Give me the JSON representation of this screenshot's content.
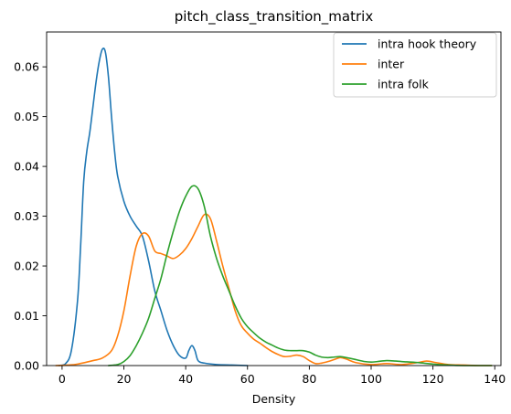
{
  "chart_data": {
    "type": "line",
    "title": "pitch_class_transition_matrix",
    "xlabel": "Density",
    "ylabel": "",
    "xlim": [
      -5,
      142
    ],
    "ylim": [
      0,
      0.067
    ],
    "xticks": [
      0,
      20,
      40,
      60,
      80,
      100,
      120,
      140
    ],
    "xtick_labels": [
      "0",
      "20",
      "40",
      "60",
      "80",
      "100",
      "120",
      "140"
    ],
    "yticks": [
      0,
      0.01,
      0.02,
      0.03,
      0.04,
      0.05,
      0.06
    ],
    "ytick_labels": [
      "0.00",
      "0.01",
      "0.02",
      "0.03",
      "0.04",
      "0.05",
      "0.06"
    ],
    "grid": false,
    "legend_position": "upper right",
    "series": [
      {
        "name": "intra hook theory",
        "color": "#1f77b4",
        "x": [
          -1,
          1,
          3,
          5,
          6,
          7,
          8,
          9,
          10,
          11,
          12,
          13,
          14,
          15,
          16,
          17,
          18,
          20,
          22,
          24,
          26,
          28,
          30,
          32,
          34,
          36,
          38,
          40,
          41,
          42,
          43,
          44,
          46,
          50,
          55,
          60
        ],
        "y": [
          0,
          0.0003,
          0.003,
          0.013,
          0.024,
          0.037,
          0.043,
          0.047,
          0.052,
          0.057,
          0.061,
          0.0635,
          0.063,
          0.058,
          0.05,
          0.043,
          0.038,
          0.033,
          0.03,
          0.028,
          0.026,
          0.021,
          0.015,
          0.011,
          0.007,
          0.004,
          0.002,
          0.0015,
          0.003,
          0.004,
          0.003,
          0.001,
          0.0005,
          0.0002,
          0.0001,
          0
        ]
      },
      {
        "name": "inter",
        "color": "#ff7f0e",
        "x": [
          -2,
          2,
          5,
          10,
          13,
          16,
          18,
          20,
          22,
          24,
          26,
          28,
          30,
          32,
          34,
          36,
          38,
          40,
          42,
          44,
          46,
          48,
          50,
          52,
          54,
          56,
          58,
          60,
          62,
          64,
          66,
          68,
          70,
          72,
          74,
          76,
          78,
          80,
          82,
          84,
          86,
          88,
          90,
          92,
          95,
          100,
          105,
          110,
          115,
          118,
          121,
          125,
          130,
          135,
          139
        ],
        "y": [
          0,
          0.0001,
          0.0003,
          0.001,
          0.0015,
          0.003,
          0.006,
          0.011,
          0.018,
          0.024,
          0.0265,
          0.026,
          0.023,
          0.0225,
          0.022,
          0.0215,
          0.0222,
          0.0235,
          0.0255,
          0.028,
          0.0303,
          0.0295,
          0.025,
          0.02,
          0.0155,
          0.011,
          0.008,
          0.0065,
          0.0053,
          0.0045,
          0.0036,
          0.0028,
          0.0022,
          0.0018,
          0.0019,
          0.0021,
          0.0018,
          0.001,
          0.0004,
          0.0005,
          0.0008,
          0.0012,
          0.0016,
          0.0013,
          0.0006,
          0.0002,
          0.0004,
          0.0002,
          0.0006,
          0.0009,
          0.0006,
          0.0002,
          0.0001,
          0,
          0
        ]
      },
      {
        "name": "intra folk",
        "color": "#2ca02c",
        "x": [
          15,
          18,
          20,
          22,
          24,
          26,
          28,
          30,
          32,
          34,
          36,
          38,
          40,
          42,
          44,
          46,
          48,
          50,
          52,
          54,
          56,
          58,
          60,
          62,
          64,
          66,
          68,
          70,
          72,
          74,
          76,
          78,
          80,
          82,
          84,
          86,
          88,
          90,
          92,
          95,
          98,
          100,
          102,
          105,
          108,
          110,
          115,
          120,
          125,
          130,
          135,
          139
        ],
        "y": [
          0,
          0.0002,
          0.0008,
          0.002,
          0.004,
          0.0065,
          0.0095,
          0.0135,
          0.0175,
          0.0225,
          0.027,
          0.031,
          0.034,
          0.036,
          0.0355,
          0.032,
          0.026,
          0.0215,
          0.018,
          0.015,
          0.012,
          0.0095,
          0.0078,
          0.0066,
          0.0055,
          0.0047,
          0.0041,
          0.0035,
          0.0031,
          0.003,
          0.003,
          0.003,
          0.0027,
          0.0021,
          0.0017,
          0.0016,
          0.0017,
          0.0018,
          0.0016,
          0.0012,
          0.0008,
          0.0007,
          0.0008,
          0.001,
          0.0009,
          0.0008,
          0.0006,
          0.0003,
          0.0001,
          0,
          0,
          0
        ]
      }
    ]
  }
}
